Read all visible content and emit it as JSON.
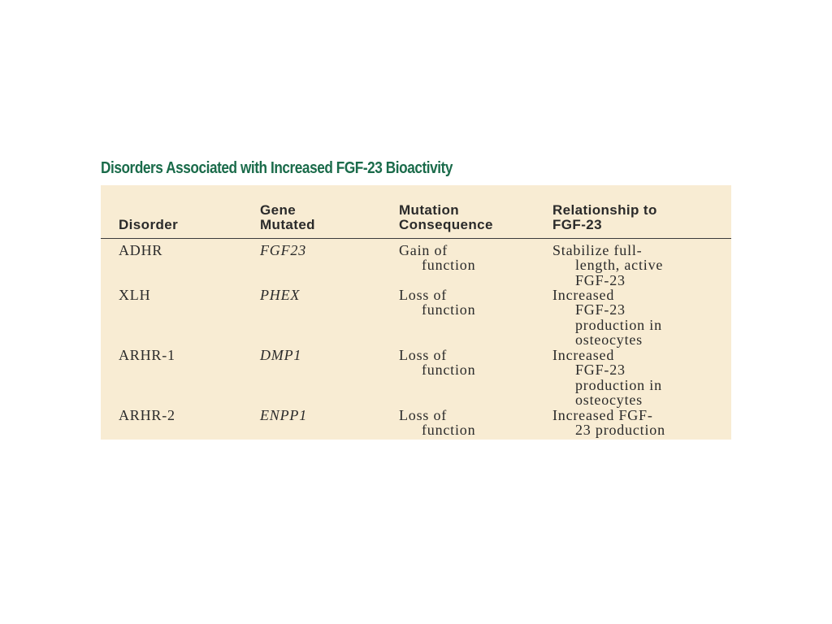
{
  "title": "Disorders Associated with Increased FGF-23 Bioactivity",
  "table": {
    "headers": {
      "disorder": [
        "Disorder"
      ],
      "gene": [
        "Gene",
        "Mutated"
      ],
      "consequence": [
        "Mutation",
        "Consequence"
      ],
      "relationship": [
        "Relationship to",
        "FGF-23"
      ]
    },
    "rows": [
      {
        "disorder": "ADHR",
        "gene": "FGF23",
        "consequence": [
          "Gain of",
          "function"
        ],
        "relationship": [
          "Stabilize full-",
          "length, active",
          "FGF-23"
        ]
      },
      {
        "disorder": "XLH",
        "gene": "PHEX",
        "consequence": [
          "Loss of",
          "function"
        ],
        "relationship": [
          "Increased",
          "FGF-23",
          "production in",
          "osteocytes"
        ]
      },
      {
        "disorder": "ARHR-1",
        "gene": "DMP1",
        "consequence": [
          "Loss of",
          "function"
        ],
        "relationship": [
          "Increased",
          "FGF-23",
          "production in",
          "osteocytes"
        ]
      },
      {
        "disorder": "ARHR-2",
        "gene": "ENPP1",
        "consequence": [
          "Loss of",
          "function"
        ],
        "relationship": [
          "Increased FGF-",
          "23 production"
        ]
      }
    ]
  },
  "colors": {
    "title": "#1a6b4a",
    "table_background": "#f8ecd3",
    "text": "#2a2a2a"
  }
}
